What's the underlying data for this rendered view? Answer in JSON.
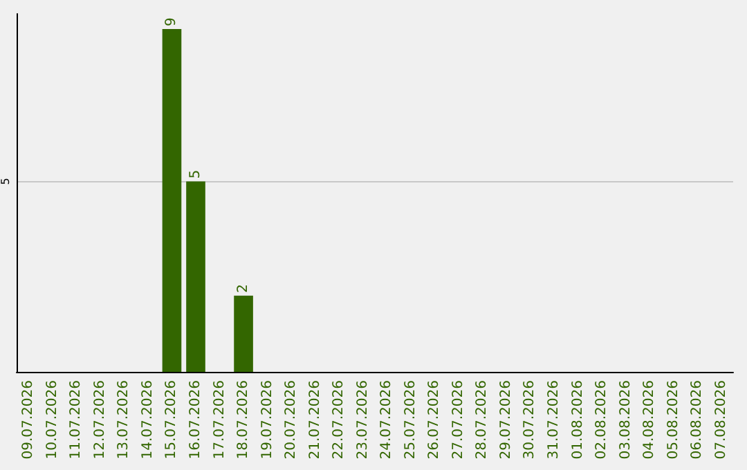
{
  "chart_data": {
    "type": "bar",
    "categories": [
      "09.07.2026",
      "10.07.2026",
      "11.07.2026",
      "12.07.2026",
      "13.07.2026",
      "14.07.2026",
      "15.07.2026",
      "16.07.2026",
      "17.07.2026",
      "18.07.2026",
      "19.07.2026",
      "20.07.2026",
      "21.07.2026",
      "22.07.2026",
      "23.07.2026",
      "24.07.2026",
      "25.07.2026",
      "26.07.2026",
      "27.07.2026",
      "28.07.2026",
      "29.07.2026",
      "30.07.2026",
      "31.07.2026",
      "01.08.2026",
      "02.08.2026",
      "03.08.2026",
      "04.08.2026",
      "05.08.2026",
      "06.08.2026",
      "07.08.2026"
    ],
    "values": [
      0,
      0,
      0,
      0,
      0,
      0,
      9,
      5,
      0,
      2,
      0,
      0,
      0,
      0,
      0,
      0,
      0,
      0,
      0,
      0,
      0,
      0,
      0,
      0,
      0,
      0,
      0,
      0,
      0,
      0
    ],
    "value_labels": [
      null,
      null,
      null,
      null,
      null,
      null,
      "9",
      "5",
      null,
      "2",
      null,
      null,
      null,
      null,
      null,
      null,
      null,
      null,
      null,
      null,
      null,
      null,
      null,
      null,
      null,
      null,
      null,
      null,
      null,
      null
    ],
    "color": "#336600",
    "ylim": [
      0,
      9.4
    ],
    "yticks": [
      5
    ],
    "grid": "y"
  }
}
